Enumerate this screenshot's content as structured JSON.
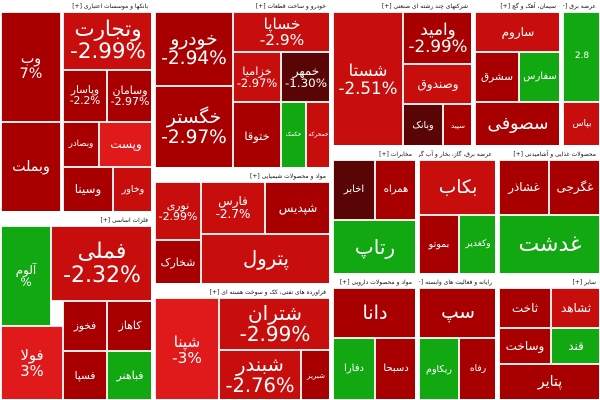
{
  "colors": {
    "deep_red": "#a80000",
    "red": "#c80d0d",
    "light_red": "#e0191b",
    "dark_maroon": "#5a0505",
    "green": "#11a811",
    "dark_green": "#0c7a0c"
  },
  "chart_data": {
    "type": "heatmap",
    "sectors": [
      {
        "id": "banks",
        "name": "بانکها و موسسات اعتباری [+]",
        "tiles": [
          {
            "name": "وتجارت",
            "change": "-2.99%",
            "color": "red"
          },
          {
            "name": "وب",
            "change": "7%",
            "color": "deep_red"
          },
          {
            "name": "وپاسار",
            "change": "-2.2%",
            "color": "deep_red"
          },
          {
            "name": "وسامان",
            "change": "-2.97%",
            "color": "deep_red"
          },
          {
            "name": "وبملت",
            "change": "",
            "color": "deep_red"
          },
          {
            "name": "وبصادر",
            "change": "",
            "color": "deep_red"
          },
          {
            "name": "وپست",
            "change": "",
            "color": "light_red"
          },
          {
            "name": "وسینا",
            "change": "",
            "color": "deep_red"
          },
          {
            "name": "وخاور",
            "change": "",
            "color": "red"
          }
        ]
      },
      {
        "id": "auto",
        "name": "خودرو و ساخت قطعات [+]",
        "tiles": [
          {
            "name": "خودرو",
            "change": "-2.94%",
            "color": "deep_red"
          },
          {
            "name": "خساپا",
            "change": "-2.9%",
            "color": "red"
          },
          {
            "name": "خگستر",
            "change": "-2.97%",
            "color": "deep_red"
          },
          {
            "name": "خزامیا",
            "change": "-2.97%",
            "color": "red"
          },
          {
            "name": "خمهر",
            "change": "-1.30%",
            "color": "dark_maroon"
          },
          {
            "name": "ختوقا",
            "change": "",
            "color": "deep_red"
          },
          {
            "name": "خکمک",
            "change": "",
            "color": "green"
          },
          {
            "name": "خمحرکه",
            "change": "",
            "color": "red"
          }
        ]
      },
      {
        "id": "metals",
        "name": "شرکتهای چند رشته ای صنعتی [+]",
        "tiles": [
          {
            "name": "شستا",
            "change": "-2.51%",
            "color": "red"
          },
          {
            "name": "وامید",
            "change": "-2.99%",
            "color": "deep_red"
          },
          {
            "name": "وصندوق",
            "change": "",
            "color": "red"
          },
          {
            "name": "وبانک",
            "change": "",
            "color": "dark_maroon"
          },
          {
            "name": "سپید",
            "change": "",
            "color": "deep_red"
          }
        ]
      },
      {
        "id": "cement",
        "name": "سیمان، آهک و گچ [+]",
        "tiles": [
          {
            "name": "ساروم",
            "change": "",
            "color": "red"
          },
          {
            "name": "سشرق",
            "change": "",
            "color": "deep_red"
          },
          {
            "name": "سفارس",
            "change": "",
            "color": "green"
          },
          {
            "name": "سصوفی",
            "change": "",
            "color": "deep_red"
          }
        ]
      },
      {
        "id": "utilities",
        "name": "عرضه برق [+]",
        "tiles": [
          {
            "name": "2.8",
            "change": "",
            "color": "green"
          },
          {
            "name": "بپاس",
            "change": "",
            "color": "red"
          }
        ]
      },
      {
        "id": "oil",
        "name": "مواد و محصولات شیمیایی [+]",
        "tiles": [
          {
            "name": "نوری",
            "change": "-2.99%",
            "color": "red"
          },
          {
            "name": "فارس",
            "change": "-2.7%",
            "color": "red"
          },
          {
            "name": "شپدیس",
            "change": "",
            "color": "deep_red"
          },
          {
            "name": "شخارک",
            "change": "",
            "color": "deep_red"
          },
          {
            "name": "پترول",
            "change": "",
            "color": "red"
          }
        ]
      },
      {
        "id": "basic_metals",
        "name": "فلزات اساسی [+]",
        "tiles": [
          {
            "name": "فملی",
            "change": "-2.32%",
            "color": "red"
          },
          {
            "name": "آلوم",
            "change": "%",
            "color": "green"
          },
          {
            "name": "فولا",
            "change": "3%",
            "color": "light_red"
          },
          {
            "name": "فخوز",
            "change": "",
            "color": "deep_red"
          },
          {
            "name": "کاهاز",
            "change": "",
            "color": "deep_red"
          },
          {
            "name": "فسپا",
            "change": "",
            "color": "deep_red"
          },
          {
            "name": "فباهنر",
            "change": "",
            "color": "green"
          }
        ]
      },
      {
        "id": "refining",
        "name": "فراورده های نفتی، کک و سوخت هسته ای [+]",
        "tiles": [
          {
            "name": "شپنا",
            "change": "-3%",
            "color": "light_red"
          },
          {
            "name": "شتران",
            "change": "-2.99%",
            "color": "red"
          },
          {
            "name": "شبندر",
            "change": "-2.76%",
            "color": "red"
          },
          {
            "name": "شبریز",
            "change": "",
            "color": "deep_red"
          }
        ]
      },
      {
        "id": "ict",
        "name": "مخابرات [+]",
        "tiles": [
          {
            "name": "اخابر",
            "change": "",
            "color": "dark_maroon"
          },
          {
            "name": "همراه",
            "change": "",
            "color": "deep_red"
          },
          {
            "name": "رتاپ",
            "change": "",
            "color": "green"
          }
        ]
      },
      {
        "id": "pharma",
        "name": "مواد و محصولات دارویی [+]",
        "tiles": [
          {
            "name": "دانا",
            "change": "",
            "color": "deep_red"
          },
          {
            "name": "دفارا",
            "change": "",
            "color": "green"
          },
          {
            "name": "دسبحا",
            "change": "",
            "color": "deep_red"
          }
        ]
      },
      {
        "id": "power_gen",
        "name": "عرضه برق، گاز، بخار و آب گرم [+]",
        "tiles": [
          {
            "name": "بکاب",
            "change": "",
            "color": "red"
          },
          {
            "name": "بموتو",
            "change": "",
            "color": "deep_red"
          },
          {
            "name": "وکغدیر",
            "change": "",
            "color": "green"
          }
        ]
      },
      {
        "id": "tech",
        "name": "رایانه و فعالیت های وابسته [+]",
        "tiles": [
          {
            "name": "سپ",
            "change": "",
            "color": "deep_red"
          },
          {
            "name": "ریکاوم",
            "change": "",
            "color": "green"
          },
          {
            "name": "رفاه",
            "change": "",
            "color": "deep_red"
          }
        ]
      },
      {
        "id": "food",
        "name": "محصولات غذایی و آشامیدنی [+]",
        "tiles": [
          {
            "name": "غشاذر",
            "change": "",
            "color": "deep_red"
          },
          {
            "name": "غگرجی",
            "change": "",
            "color": "deep_red"
          },
          {
            "name": "غدشت",
            "change": "",
            "color": "green"
          }
        ]
      },
      {
        "id": "other",
        "name": "سایر [+]",
        "tiles": [
          {
            "name": "ثاخت",
            "change": "",
            "color": "deep_red"
          },
          {
            "name": "ثشاهد",
            "change": "",
            "color": "red"
          },
          {
            "name": "وساخت",
            "change": "",
            "color": "deep_red"
          },
          {
            "name": "قند",
            "change": "",
            "color": "green"
          },
          {
            "name": "پتایر",
            "change": "",
            "color": "deep_red"
          }
        ]
      }
    ]
  }
}
